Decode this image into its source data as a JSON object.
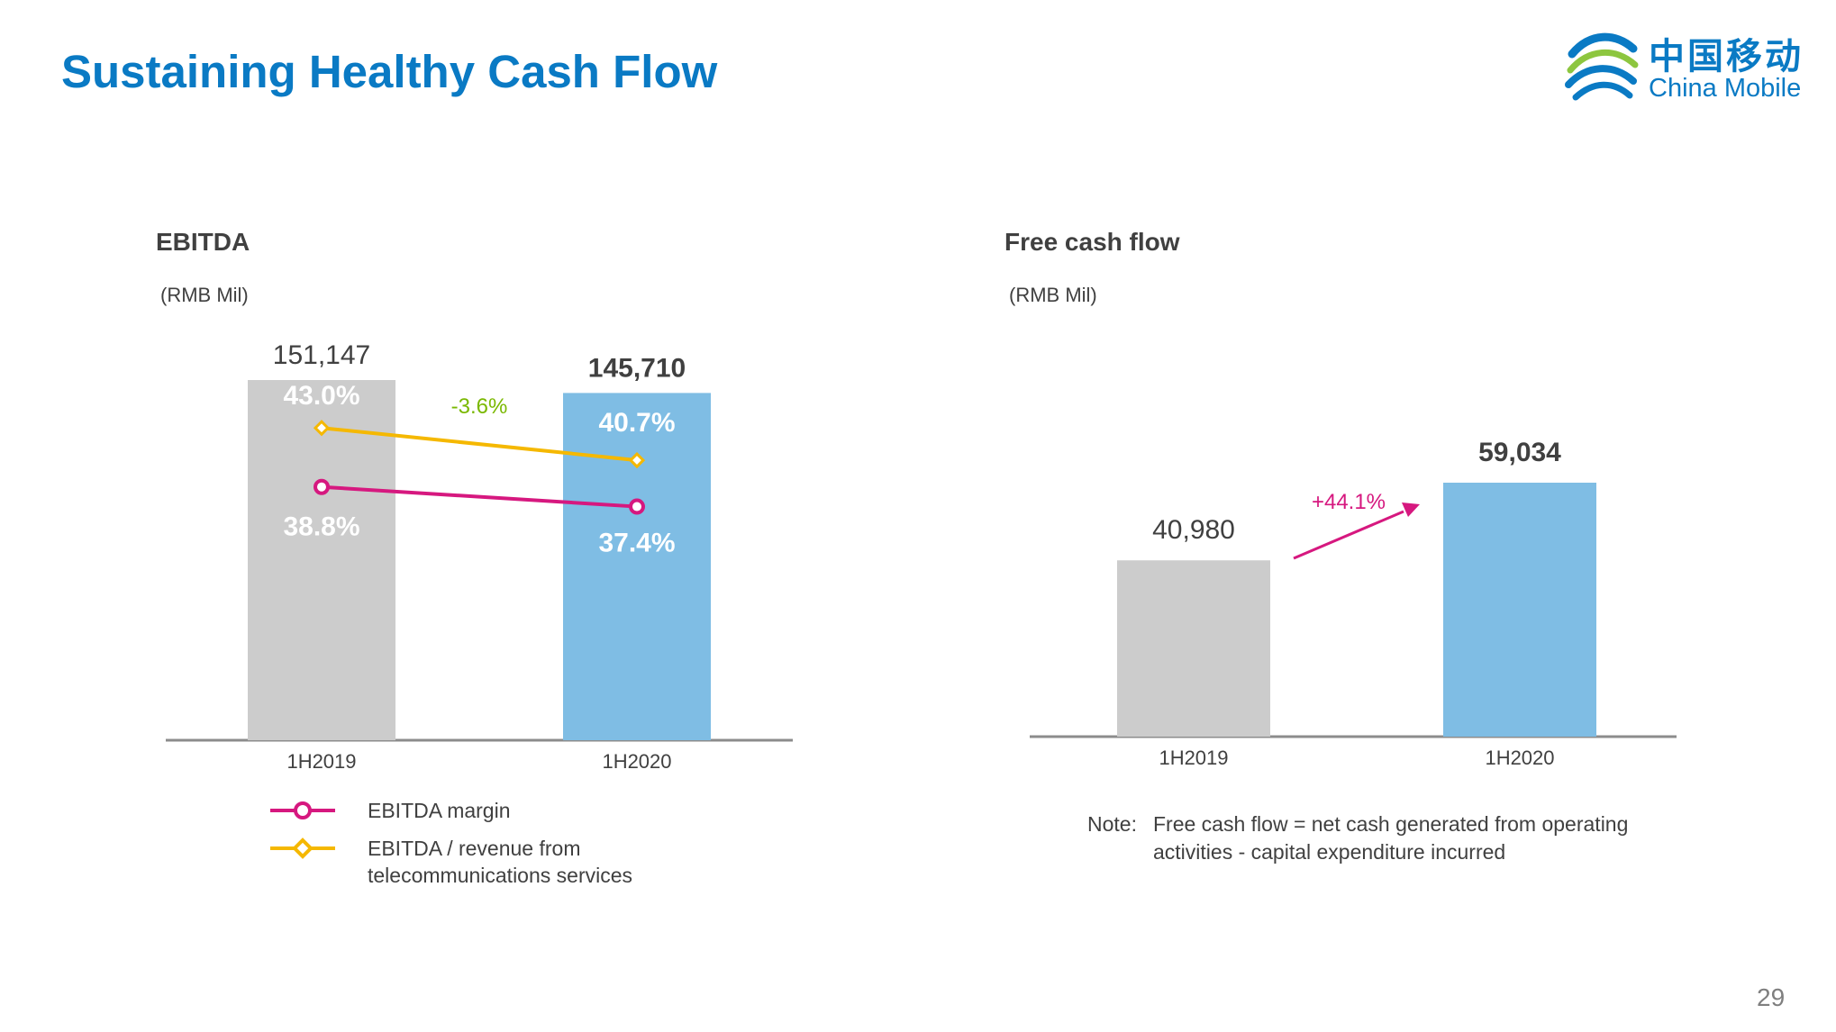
{
  "page": {
    "title": "Sustaining Healthy Cash Flow",
    "page_number": "29"
  },
  "logo": {
    "chinese_text": "中国移动",
    "english_text": "China Mobile",
    "colors": [
      "#0a7ac4",
      "#8dc63f"
    ]
  },
  "colors": {
    "title": "#0a7ac4",
    "bar_prior": "#cccccc",
    "bar_current": "#7fbde4",
    "ebitda_margin_line": "#d6187f",
    "ebitda_revenue_line": "#f5b800",
    "change_negative": "#7ab800",
    "change_positive": "#d6187f"
  },
  "chart_data": [
    {
      "type": "bar",
      "title": "EBITDA",
      "unit": "(RMB Mil)",
      "categories": [
        "1H2019",
        "1H2020"
      ],
      "values": [
        151147,
        145710
      ],
      "value_labels": [
        "151,147",
        "145,710"
      ],
      "change_label": "-3.6%",
      "series": [
        {
          "name": "EBITDA / revenue from telecommunications services",
          "type": "line",
          "marker": "diamond",
          "values": [
            43.0,
            40.7
          ],
          "labels": [
            "43.0%",
            "40.7%"
          ]
        },
        {
          "name": "EBITDA margin",
          "type": "line",
          "marker": "circle",
          "values": [
            38.8,
            37.4
          ],
          "labels": [
            "38.8%",
            "37.4%"
          ]
        }
      ],
      "legend": [
        {
          "label": "EBITDA margin",
          "marker": "circle"
        },
        {
          "label": "EBITDA / revenue from telecommunications services",
          "marker": "diamond"
        }
      ],
      "legend_position": "bottom"
    },
    {
      "type": "bar",
      "title": "Free cash flow",
      "unit": "(RMB Mil)",
      "categories": [
        "1H2019",
        "1H2020"
      ],
      "values": [
        40980,
        59034
      ],
      "value_labels": [
        "40,980",
        "59,034"
      ],
      "change_label": "+44.1%",
      "note_label": "Note:",
      "note": "Free cash flow = net cash generated from operating activities - capital expenditure incurred"
    }
  ]
}
